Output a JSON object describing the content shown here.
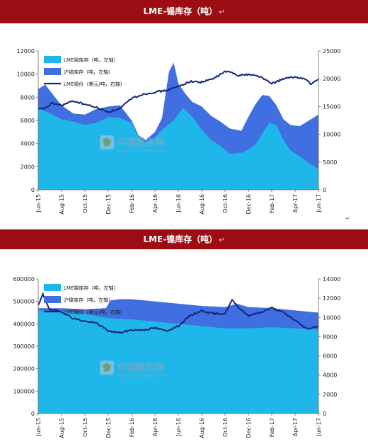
{
  "colors": {
    "banner": "#9b0d12",
    "lme_stock": "#1fb7ea",
    "sh_stock": "#3f6fe0",
    "price": "#152878"
  },
  "watermark": {
    "text": "中国报告网",
    "url": "www.chinabaogao.com",
    "icon": "map-logo-icon"
  },
  "paragraph_mark": "↵",
  "chart_data": [
    {
      "type": "area",
      "title": "LME-锡库存（吨）",
      "x_ticks": [
        "Jun-15",
        "Aug-15",
        "Oct-15",
        "Dec-15",
        "Feb-16",
        "Apr-16",
        "Jun-16",
        "Aug-16",
        "Oct-16",
        "Dec-16",
        "Feb-17",
        "Apr-17",
        "Jun-17"
      ],
      "y_left_ticks": [
        "0",
        "2000",
        "4000",
        "6000",
        "8000",
        "10000",
        "12000"
      ],
      "y_right_ticks": [
        "0",
        "5000",
        "10000",
        "15000",
        "20000",
        "25000"
      ],
      "ylim_left": [
        0,
        12000
      ],
      "ylim_right": [
        0,
        25000
      ],
      "series": [
        {
          "name": "LME锡库存（吨，左轴）",
          "kind": "area",
          "axis": "left",
          "x": [
            0,
            0.3,
            0.6,
            1,
            1.5,
            2,
            2.5,
            3,
            3.5,
            4,
            4.3,
            4.6,
            5,
            5.3,
            5.8,
            6.2,
            6.6,
            7,
            7.4,
            7.8,
            8.2,
            8.7,
            9,
            9.3,
            9.6,
            9.9,
            10.2,
            10.5,
            10.8,
            11.2,
            11.6,
            12
          ],
          "values": [
            7000,
            6800,
            6500,
            6100,
            5900,
            5600,
            5800,
            6300,
            6200,
            5800,
            4600,
            4100,
            4500,
            5200,
            6000,
            7100,
            6300,
            5200,
            4300,
            3800,
            3100,
            3200,
            3500,
            3900,
            4900,
            5800,
            5600,
            4300,
            3400,
            2900,
            2300,
            1800
          ]
        },
        {
          "name": "沪锡库存（吨，左轴）",
          "kind": "area_stacked",
          "axis": "left",
          "x": [
            0,
            0.3,
            0.6,
            1,
            1.5,
            2,
            2.5,
            3,
            3.5,
            4,
            4.3,
            4.6,
            5,
            5.3,
            5.6,
            5.8,
            6,
            6.3,
            6.6,
            7,
            7.4,
            7.8,
            8.2,
            8.7,
            9,
            9.3,
            9.6,
            9.9,
            10.2,
            10.5,
            10.8,
            11.2,
            11.6,
            12
          ],
          "values": [
            8700,
            9100,
            8300,
            7300,
            6600,
            6500,
            7000,
            7200,
            7300,
            6000,
            4700,
            4300,
            5000,
            6200,
            10200,
            11000,
            9200,
            8300,
            7600,
            7200,
            6400,
            5900,
            5300,
            5100,
            6300,
            7400,
            8200,
            8100,
            7300,
            6100,
            5600,
            5500,
            6000,
            6500
          ]
        },
        {
          "name": "LME锡价（美元/吨，右轴）",
          "kind": "line",
          "axis": "right",
          "x": [
            0,
            0.3,
            0.6,
            1,
            1.5,
            2,
            2.5,
            3,
            3.5,
            4,
            4.5,
            5,
            5.5,
            6,
            6.5,
            7,
            7.5,
            8,
            8.3,
            8.6,
            9,
            9.5,
            10,
            10.5,
            11,
            11.4,
            11.7,
            12
          ],
          "values": [
            14500,
            14700,
            15600,
            15200,
            16000,
            15400,
            14800,
            14000,
            14600,
            16500,
            17200,
            17600,
            17900,
            18600,
            19500,
            19400,
            20000,
            21300,
            21100,
            20600,
            20800,
            20400,
            19100,
            20000,
            20300,
            20000,
            19000,
            19900
          ]
        }
      ]
    },
    {
      "type": "area",
      "title": "LME-镍库存（吨）",
      "x_ticks": [
        "Jun-15",
        "Aug-15",
        "Oct-15",
        "Dec-15",
        "Feb-16",
        "Apr-16",
        "Jun-16",
        "Aug-16",
        "Oct-16",
        "Dec-16",
        "Feb-17",
        "Apr-17",
        "Jun-17"
      ],
      "y_left_ticks": [
        "0",
        "100000",
        "200000",
        "300000",
        "400000",
        "500000",
        "600000"
      ],
      "y_right_ticks": [
        "0",
        "2000",
        "4000",
        "6000",
        "8000",
        "10000",
        "12000",
        "14000"
      ],
      "ylim_left": [
        0,
        600000
      ],
      "ylim_right": [
        0,
        14000
      ],
      "series": [
        {
          "name": "LME镍库存（吨，左轴）",
          "kind": "area",
          "axis": "left",
          "x": [
            0,
            1,
            2,
            3,
            4,
            5,
            6,
            7,
            8,
            9,
            10,
            11,
            12
          ],
          "values": [
            460000,
            455000,
            445000,
            425000,
            420000,
            410000,
            400000,
            390000,
            380000,
            380000,
            385000,
            380000,
            375000
          ]
        },
        {
          "name": "沪镍库存（吨，左轴）",
          "kind": "area_stacked",
          "axis": "left",
          "x": [
            0,
            1,
            2,
            2.9,
            3.1,
            3.5,
            4,
            5,
            6,
            7,
            8,
            8.5,
            9,
            10,
            11,
            12
          ],
          "values": [
            470000,
            470000,
            465000,
            470000,
            505000,
            510000,
            510000,
            500000,
            490000,
            480000,
            475000,
            490000,
            475000,
            470000,
            460000,
            450000
          ]
        },
        {
          "name": "LME镍价（美元/吨，右轴）",
          "kind": "line",
          "axis": "right",
          "x": [
            0,
            0.2,
            0.5,
            1,
            1.5,
            2,
            2.5,
            3,
            3.5,
            4,
            4.5,
            5,
            5.5,
            6,
            6.5,
            7,
            7.5,
            8,
            8.3,
            8.6,
            9,
            9.5,
            10,
            10.5,
            11,
            11.5,
            12
          ],
          "values": [
            11200,
            12400,
            10800,
            10600,
            9900,
            9600,
            9400,
            8600,
            8400,
            8700,
            8700,
            8900,
            8600,
            9100,
            10200,
            10700,
            10400,
            10400,
            11800,
            11000,
            10200,
            10500,
            11000,
            10500,
            9700,
            8800,
            9100
          ]
        }
      ]
    }
  ]
}
